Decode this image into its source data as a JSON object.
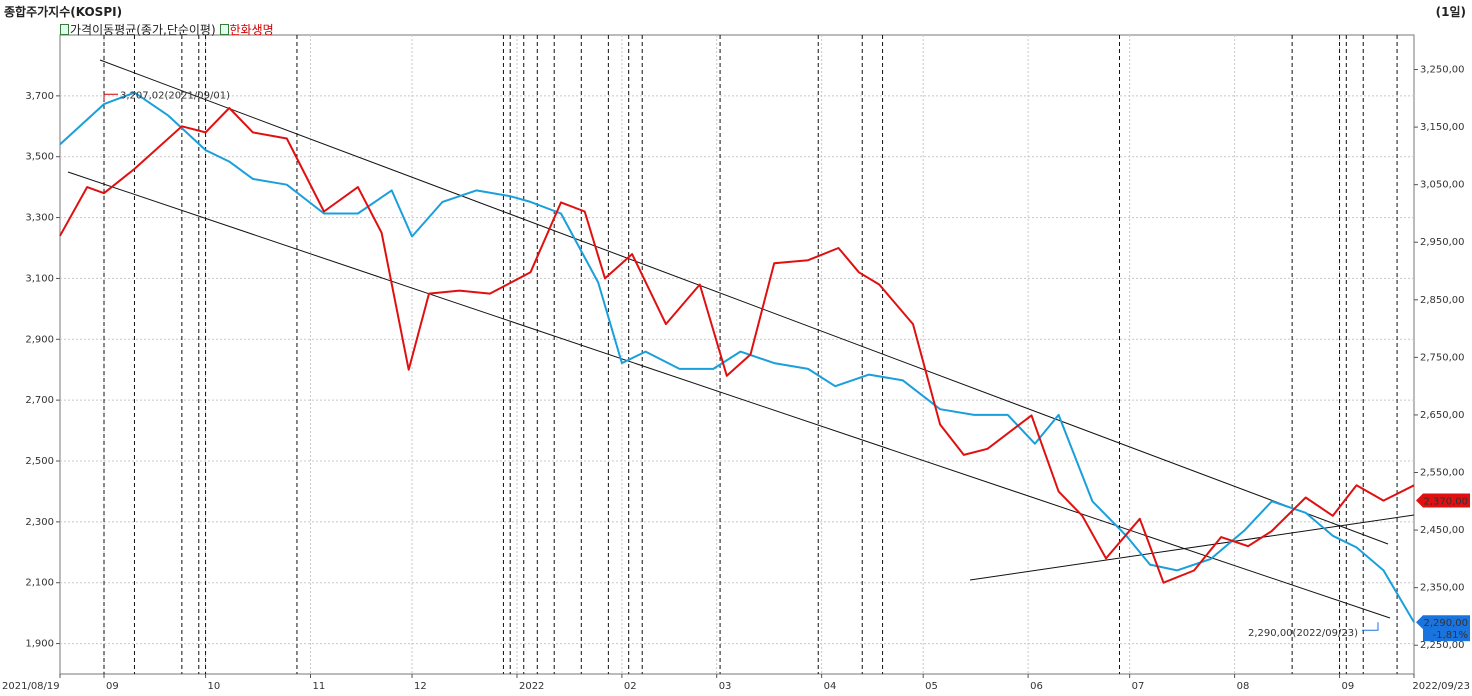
{
  "title": "종합주가지수(KOSPI)",
  "period": "(1일)",
  "legend": [
    {
      "label": "가격이동평균(종가,단순이평)",
      "color": "#1a9fdc"
    },
    {
      "label": "한화생명",
      "color": "#e01010"
    }
  ],
  "colors": {
    "kospi": "#1a9fdc",
    "hanwha": "#e01010",
    "trendline": "#111111",
    "grid": "#c8c8c8"
  },
  "chart_data": {
    "type": "line",
    "x_labels": [
      "2021/08/19",
      "09",
      "10",
      "11",
      "12",
      "2022",
      "02",
      "03",
      "04",
      "05",
      "06",
      "07",
      "08",
      "09",
      "2022/09/23"
    ],
    "left_axis": {
      "ticks": [
        "3,700",
        "3,500",
        "3,300",
        "3,100",
        "2,900",
        "2,700",
        "2,500",
        "2,300",
        "2,100",
        "1,900"
      ],
      "range": [
        1800,
        3900
      ]
    },
    "right_axis": {
      "ticks": [
        "3,250,00",
        "3,150,00",
        "3,050,00",
        "2,950,00",
        "2,850,00",
        "2,750,00",
        "2,650,00",
        "2,550,00",
        "2,450,00",
        "2,350,00",
        "2,250,00"
      ],
      "range": [
        2200,
        3310
      ]
    },
    "series": [
      {
        "name": "가격이동평균(종가,단순이평)",
        "axis": "right",
        "x": [
          "2021/08/19",
          "2021/09/01",
          "2021/09/10",
          "2021/09/20",
          "2021/10/01",
          "2021/10/08",
          "2021/10/15",
          "2021/10/25",
          "2021/11/05",
          "2021/11/15",
          "2021/11/25",
          "2021/12/01",
          "2021/12/10",
          "2021/12/20",
          "2021/12/30",
          "2022/01/05",
          "2022/01/14",
          "2022/01/25",
          "2022/02/01",
          "2022/02/08",
          "2022/02/18",
          "2022/02/28",
          "2022/03/08",
          "2022/03/18",
          "2022/03/28",
          "2022/04/05",
          "2022/04/15",
          "2022/04/25",
          "2022/05/06",
          "2022/05/16",
          "2022/05/26",
          "2022/06/03",
          "2022/06/10",
          "2022/06/20",
          "2022/06/30",
          "2022/07/07",
          "2022/07/15",
          "2022/07/25",
          "2022/08/04",
          "2022/08/12",
          "2022/08/22",
          "2022/08/30",
          "2022/09/06",
          "2022/09/14",
          "2022/09/23"
        ],
        "values": [
          3120,
          3190,
          3210,
          3170,
          3110,
          3090,
          3060,
          3050,
          3000,
          3000,
          3040,
          2960,
          3020,
          3040,
          3030,
          3020,
          3000,
          2880,
          2740,
          2760,
          2730,
          2730,
          2760,
          2740,
          2730,
          2700,
          2720,
          2710,
          2660,
          2650,
          2650,
          2600,
          2650,
          2500,
          2440,
          2390,
          2380,
          2400,
          2450,
          2500,
          2480,
          2440,
          2420,
          2380,
          2290
        ]
      },
      {
        "name": "한화생명",
        "axis": "left",
        "x": [
          "2021/08/19",
          "2021/08/27",
          "2021/09/01",
          "2021/09/10",
          "2021/09/24",
          "2021/10/01",
          "2021/10/08",
          "2021/10/15",
          "2021/10/25",
          "2021/11/05",
          "2021/11/15",
          "2021/11/22",
          "2021/11/30",
          "2021/12/06",
          "2021/12/15",
          "2021/12/24",
          "2022/01/05",
          "2022/01/14",
          "2022/01/21",
          "2022/01/27",
          "2022/02/04",
          "2022/02/14",
          "2022/02/24",
          "2022/03/04",
          "2022/03/11",
          "2022/03/18",
          "2022/03/28",
          "2022/04/06",
          "2022/04/12",
          "2022/04/18",
          "2022/04/28",
          "2022/05/06",
          "2022/05/13",
          "2022/05/20",
          "2022/06/02",
          "2022/06/10",
          "2022/06/17",
          "2022/06/24",
          "2022/07/04",
          "2022/07/11",
          "2022/07/20",
          "2022/07/28",
          "2022/08/05",
          "2022/08/12",
          "2022/08/22",
          "2022/08/30",
          "2022/09/06",
          "2022/09/14",
          "2022/09/23"
        ],
        "values": [
          3240,
          3400,
          3380,
          3460,
          3600,
          3580,
          3660,
          3580,
          3560,
          3320,
          3400,
          3250,
          2800,
          3050,
          3060,
          3050,
          3120,
          3350,
          3320,
          3100,
          3180,
          2950,
          3080,
          2780,
          2850,
          3150,
          3160,
          3200,
          3120,
          3080,
          2950,
          2620,
          2520,
          2540,
          2650,
          2400,
          2320,
          2180,
          2310,
          2100,
          2140,
          2250,
          2220,
          2270,
          2380,
          2320,
          2420,
          2370,
          2420
        ]
      }
    ],
    "annotations": [
      {
        "text": "3,207,02(2021/09/01)",
        "series": "가격이동평균(종가,단순이평)"
      },
      {
        "text": "2,290,00(2022/09/23)",
        "series": "가격이동평균(종가,단순이평)"
      }
    ],
    "badges": [
      {
        "text": "2,370,00",
        "color": "#e01010"
      },
      {
        "text": "2,290,00",
        "color": "#1a74e0"
      },
      {
        "text": "-1,81%",
        "color": "#1a74e0"
      }
    ],
    "event_lines": [
      "2021/09/01",
      "2021/09/10",
      "2021/09/24",
      "2021/09/29",
      "2021/10/01",
      "2021/10/28",
      "2021/12/28",
      "2021/12/30",
      "2022/01/03",
      "2022/01/07",
      "2022/01/12",
      "2022/01/20",
      "2022/01/28",
      "2022/02/03",
      "2022/02/07",
      "2022/03/02",
      "2022/03/31",
      "2022/04/13",
      "2022/04/19",
      "2022/06/28",
      "2022/08/18",
      "2022/09/01",
      "2022/09/03",
      "2022/09/08",
      "2022/09/18"
    ],
    "grid": true
  }
}
